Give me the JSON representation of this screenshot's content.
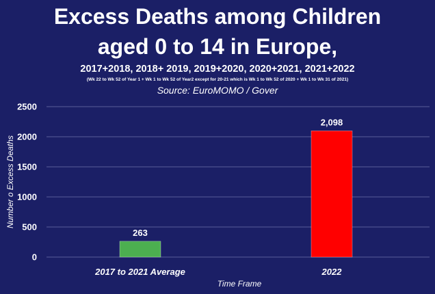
{
  "chart_data": {
    "type": "bar",
    "title_line1": "Excess Deaths among Children",
    "title_line2": "aged 0 to 14 in Europe,",
    "subtitle": "2017+2018, 2018+ 2019, 2019+2020, 2020+2021, 2021+2022",
    "note": "(Wk 22 to Wk 52 of Year 1 + Wk 1 to Wk 52 of Year2 except for 20-21 which is Wk 1 to Wk 52 of 2020 + Wk 1 to Wk 31 of 2021)",
    "source": "Source: EuroMOMO / Gover",
    "categories": [
      "2017 to 2021 Average",
      "2022"
    ],
    "values": [
      263,
      2098
    ],
    "data_labels": [
      "263",
      "2,098"
    ],
    "bar_colors": [
      "#4caf50",
      "#ff0000"
    ],
    "xlabel": "Time Frame",
    "ylabel": "Number o Excess Deaths",
    "ylim": [
      0,
      2500
    ],
    "yticks": [
      0,
      500,
      1000,
      1500,
      2000,
      2500
    ],
    "grid": true,
    "legend": "none"
  },
  "colors": {
    "background": "#1b1f66",
    "text": "#ffffff",
    "grid": "#5a5e9a"
  }
}
